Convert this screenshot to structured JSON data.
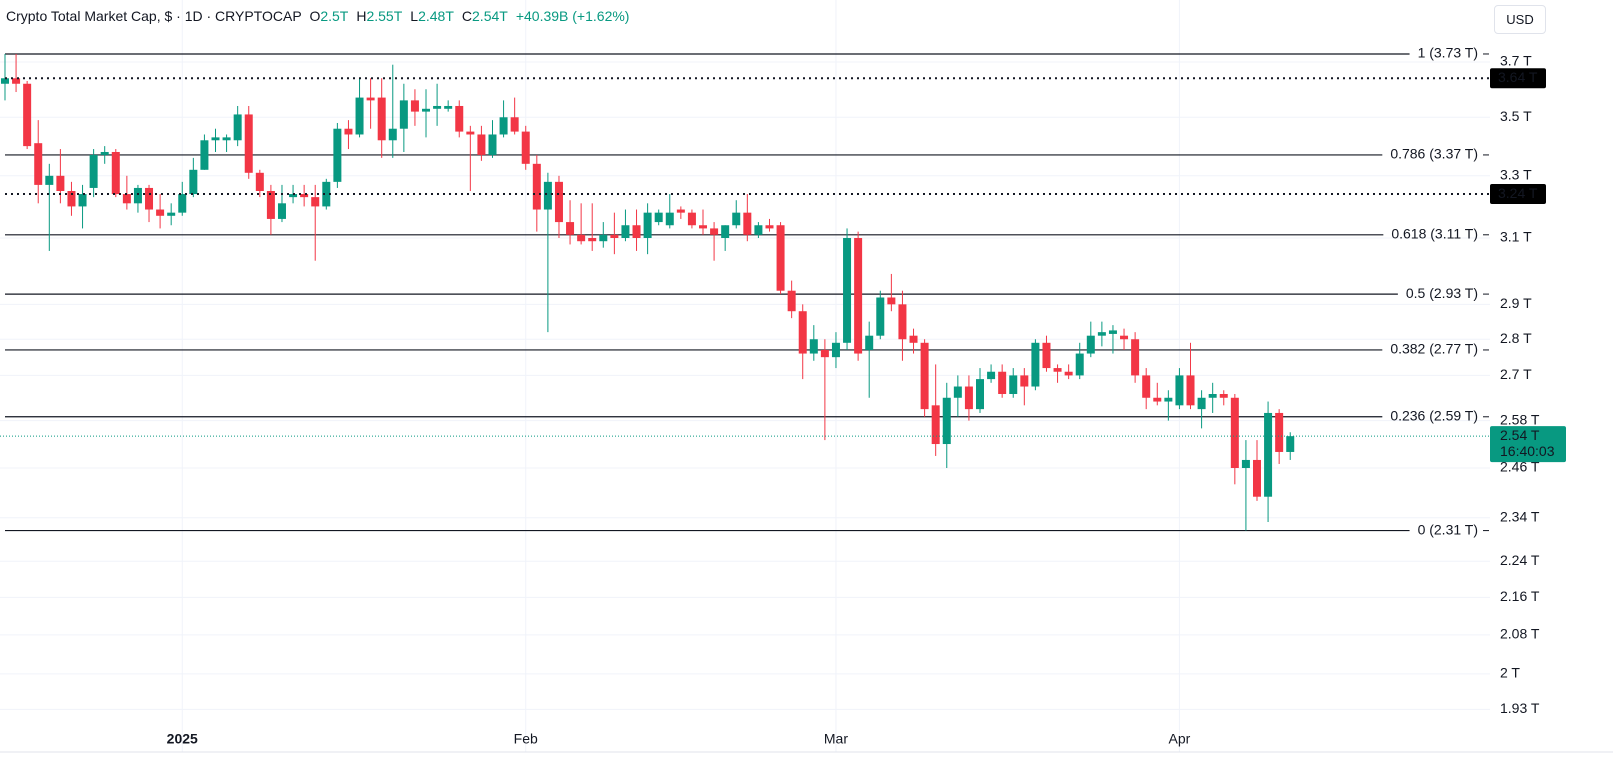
{
  "header": {
    "title": "Crypto Total Market Cap, $ · 1D · CRYPTOCAP",
    "ohlc": [
      {
        "label": "O",
        "value": "2.5T"
      },
      {
        "label": "H",
        "value": "2.55T"
      },
      {
        "label": "L",
        "value": "2.48T"
      },
      {
        "label": "C",
        "value": "2.54T"
      }
    ],
    "change": "+40.39B (+1.62%)"
  },
  "currency": "USD",
  "chart_data": {
    "type": "candlestick",
    "log_scale": true,
    "grid": true,
    "up_color": "#089981",
    "down_color": "#f23645",
    "open": [
      3.62,
      3.64,
      3.62,
      3.41,
      3.27,
      3.3,
      3.25,
      3.2,
      3.26,
      3.37,
      3.38,
      3.24,
      3.21,
      3.26,
      3.19,
      3.17,
      3.18,
      3.24,
      3.32,
      3.42,
      3.42,
      3.42,
      3.51,
      3.31,
      3.25,
      3.16,
      3.23,
      3.24,
      3.23,
      3.2,
      3.28,
      3.46,
      3.44,
      3.57,
      3.57,
      3.42,
      3.46,
      3.56,
      3.52,
      3.53,
      3.53,
      3.54,
      3.45,
      3.44,
      3.37,
      3.44,
      3.5,
      3.45,
      3.34,
      3.19,
      3.28,
      3.15,
      3.11,
      3.1,
      3.09,
      3.11,
      3.1,
      3.14,
      3.1,
      3.15,
      3.14,
      3.19,
      3.18,
      3.14,
      3.13,
      3.1,
      3.14,
      3.18,
      3.11,
      3.14,
      3.14,
      2.94,
      2.88,
      2.76,
      2.77,
      2.75,
      2.79,
      3.1,
      2.77,
      2.81,
      2.92,
      2.9,
      2.81,
      2.79,
      2.62,
      2.52,
      2.64,
      2.67,
      2.61,
      2.69,
      2.71,
      2.65,
      2.7,
      2.67,
      2.79,
      2.72,
      2.71,
      2.7,
      2.76,
      2.81,
      2.815,
      2.81,
      2.8,
      2.7,
      2.64,
      2.63,
      2.62,
      2.7,
      2.61,
      2.64,
      2.65,
      2.64,
      2.46,
      2.48,
      2.39,
      2.6,
      2.5
    ],
    "high": [
      3.73,
      3.73,
      3.63,
      3.49,
      3.34,
      3.39,
      3.28,
      3.27,
      3.39,
      3.4,
      3.39,
      3.3,
      3.27,
      3.27,
      3.24,
      3.21,
      3.28,
      3.36,
      3.44,
      3.46,
      3.44,
      3.54,
      3.54,
      3.32,
      3.27,
      3.27,
      3.27,
      3.27,
      3.27,
      3.29,
      3.48,
      3.49,
      3.64,
      3.64,
      3.64,
      3.69,
      3.62,
      3.6,
      3.6,
      3.62,
      3.56,
      3.56,
      3.47,
      3.47,
      3.49,
      3.56,
      3.57,
      3.47,
      3.37,
      3.31,
      3.3,
      3.22,
      3.21,
      3.21,
      3.15,
      3.18,
      3.19,
      3.19,
      3.21,
      3.19,
      3.24,
      3.2,
      3.19,
      3.19,
      3.15,
      3.14,
      3.22,
      3.24,
      3.15,
      3.16,
      3.15,
      2.97,
      2.9,
      2.84,
      2.8,
      2.82,
      3.13,
      3.12,
      2.85,
      2.94,
      2.99,
      2.94,
      2.83,
      2.8,
      2.73,
      2.68,
      2.7,
      2.7,
      2.72,
      2.73,
      2.73,
      2.72,
      2.72,
      2.8,
      2.81,
      2.73,
      2.73,
      2.79,
      2.85,
      2.85,
      2.84,
      2.83,
      2.82,
      2.72,
      2.68,
      2.66,
      2.72,
      2.79,
      2.66,
      2.68,
      2.66,
      2.65,
      2.53,
      2.53,
      2.63,
      2.61,
      2.55
    ],
    "low": [
      3.56,
      3.59,
      3.39,
      3.21,
      3.06,
      3.21,
      3.17,
      3.13,
      3.23,
      3.34,
      3.23,
      3.19,
      3.18,
      3.15,
      3.13,
      3.14,
      3.17,
      3.23,
      3.32,
      3.38,
      3.38,
      3.4,
      3.29,
      3.23,
      3.11,
      3.15,
      3.21,
      3.2,
      3.03,
      3.19,
      3.26,
      3.39,
      3.43,
      3.46,
      3.36,
      3.36,
      3.38,
      3.47,
      3.43,
      3.47,
      3.52,
      3.43,
      3.25,
      3.35,
      3.36,
      3.43,
      3.44,
      3.32,
      3.12,
      2.82,
      3.1,
      3.08,
      3.08,
      3.06,
      3.07,
      3.05,
      3.09,
      3.06,
      3.05,
      3.14,
      3.13,
      3.16,
      3.13,
      3.11,
      3.03,
      3.06,
      3.13,
      3.09,
      3.1,
      3.12,
      2.93,
      2.86,
      2.69,
      2.74,
      2.53,
      2.72,
      2.77,
      2.74,
      2.64,
      2.8,
      2.88,
      2.74,
      2.76,
      2.59,
      2.49,
      2.46,
      2.59,
      2.58,
      2.6,
      2.68,
      2.64,
      2.64,
      2.62,
      2.66,
      2.71,
      2.68,
      2.69,
      2.69,
      2.75,
      2.78,
      2.76,
      2.77,
      2.68,
      2.61,
      2.62,
      2.58,
      2.61,
      2.61,
      2.56,
      2.6,
      2.62,
      2.42,
      2.31,
      2.38,
      2.33,
      2.47,
      2.48
    ],
    "close": [
      3.64,
      3.62,
      3.4,
      3.27,
      3.3,
      3.25,
      3.2,
      3.24,
      3.37,
      3.38,
      3.24,
      3.21,
      3.26,
      3.19,
      3.17,
      3.18,
      3.24,
      3.32,
      3.42,
      3.43,
      3.43,
      3.51,
      3.31,
      3.25,
      3.16,
      3.21,
      3.24,
      3.23,
      3.2,
      3.28,
      3.46,
      3.44,
      3.57,
      3.56,
      3.42,
      3.46,
      3.56,
      3.52,
      3.53,
      3.54,
      3.54,
      3.45,
      3.44,
      3.37,
      3.44,
      3.5,
      3.45,
      3.34,
      3.19,
      3.28,
      3.15,
      3.11,
      3.09,
      3.09,
      3.11,
      3.1,
      3.14,
      3.1,
      3.18,
      3.18,
      3.18,
      3.18,
      3.14,
      3.13,
      3.11,
      3.14,
      3.18,
      3.11,
      3.14,
      3.13,
      2.94,
      2.88,
      2.76,
      2.8,
      2.75,
      2.79,
      3.1,
      2.76,
      2.81,
      2.92,
      2.9,
      2.8,
      2.79,
      2.61,
      2.52,
      2.64,
      2.67,
      2.61,
      2.69,
      2.71,
      2.65,
      2.7,
      2.67,
      2.79,
      2.72,
      2.71,
      2.7,
      2.76,
      2.81,
      2.82,
      2.825,
      2.8,
      2.7,
      2.64,
      2.63,
      2.64,
      2.7,
      2.62,
      2.64,
      2.65,
      2.64,
      2.46,
      2.48,
      2.39,
      2.6,
      2.5,
      2.54
    ],
    "xlim": [
      -0.45,
      134.03
    ],
    "ylim": [
      1.849,
      3.938
    ],
    "xticks": [
      {
        "value": 16,
        "label": "2025"
      },
      {
        "value": 47,
        "label": "Feb"
      },
      {
        "value": 75,
        "label": "Mar"
      },
      {
        "value": 106,
        "label": "Apr"
      }
    ],
    "yticks": [
      {
        "value": 3.7,
        "label": "3.7 T"
      },
      {
        "value": 3.5,
        "label": "3.5 T"
      },
      {
        "value": 3.3,
        "label": "3.3 T"
      },
      {
        "value": 3.1,
        "label": "3.1 T"
      },
      {
        "value": 2.9,
        "label": "2.9 T"
      },
      {
        "value": 2.8,
        "label": "2.8 T"
      },
      {
        "value": 2.7,
        "label": "2.7 T"
      },
      {
        "value": 2.58,
        "label": "2.58 T"
      },
      {
        "value": 2.46,
        "label": "2.46 T"
      },
      {
        "value": 2.34,
        "label": "2.34 T"
      },
      {
        "value": 2.24,
        "label": "2.24 T"
      },
      {
        "value": 2.16,
        "label": "2.16 T"
      },
      {
        "value": 2.08,
        "label": "2.08 T"
      },
      {
        "value": 2,
        "label": "2 T"
      },
      {
        "value": 1.93,
        "label": "1.93 T"
      }
    ],
    "levels": [
      {
        "value": 3.73,
        "label": "1 (3.73 T)"
      },
      {
        "value": 3.37,
        "label": "0.786 (3.37 T)"
      },
      {
        "value": 3.11,
        "label": "0.618 (3.11 T)"
      },
      {
        "value": 2.93,
        "label": "0.5 (2.93 T)"
      },
      {
        "value": 2.77,
        "label": "0.382 (2.77 T)"
      },
      {
        "value": 2.59,
        "label": "0.236 (2.59 T)"
      },
      {
        "value": 2.31,
        "label": "0 (2.31 T)"
      }
    ],
    "price_marks": [
      {
        "value": 3.64,
        "label": "3.64 T"
      },
      {
        "value": 3.24,
        "label": "3.24 T"
      }
    ],
    "last_price": {
      "value": 2.54,
      "label": "2.54 T",
      "countdown": "16:40:03"
    }
  }
}
